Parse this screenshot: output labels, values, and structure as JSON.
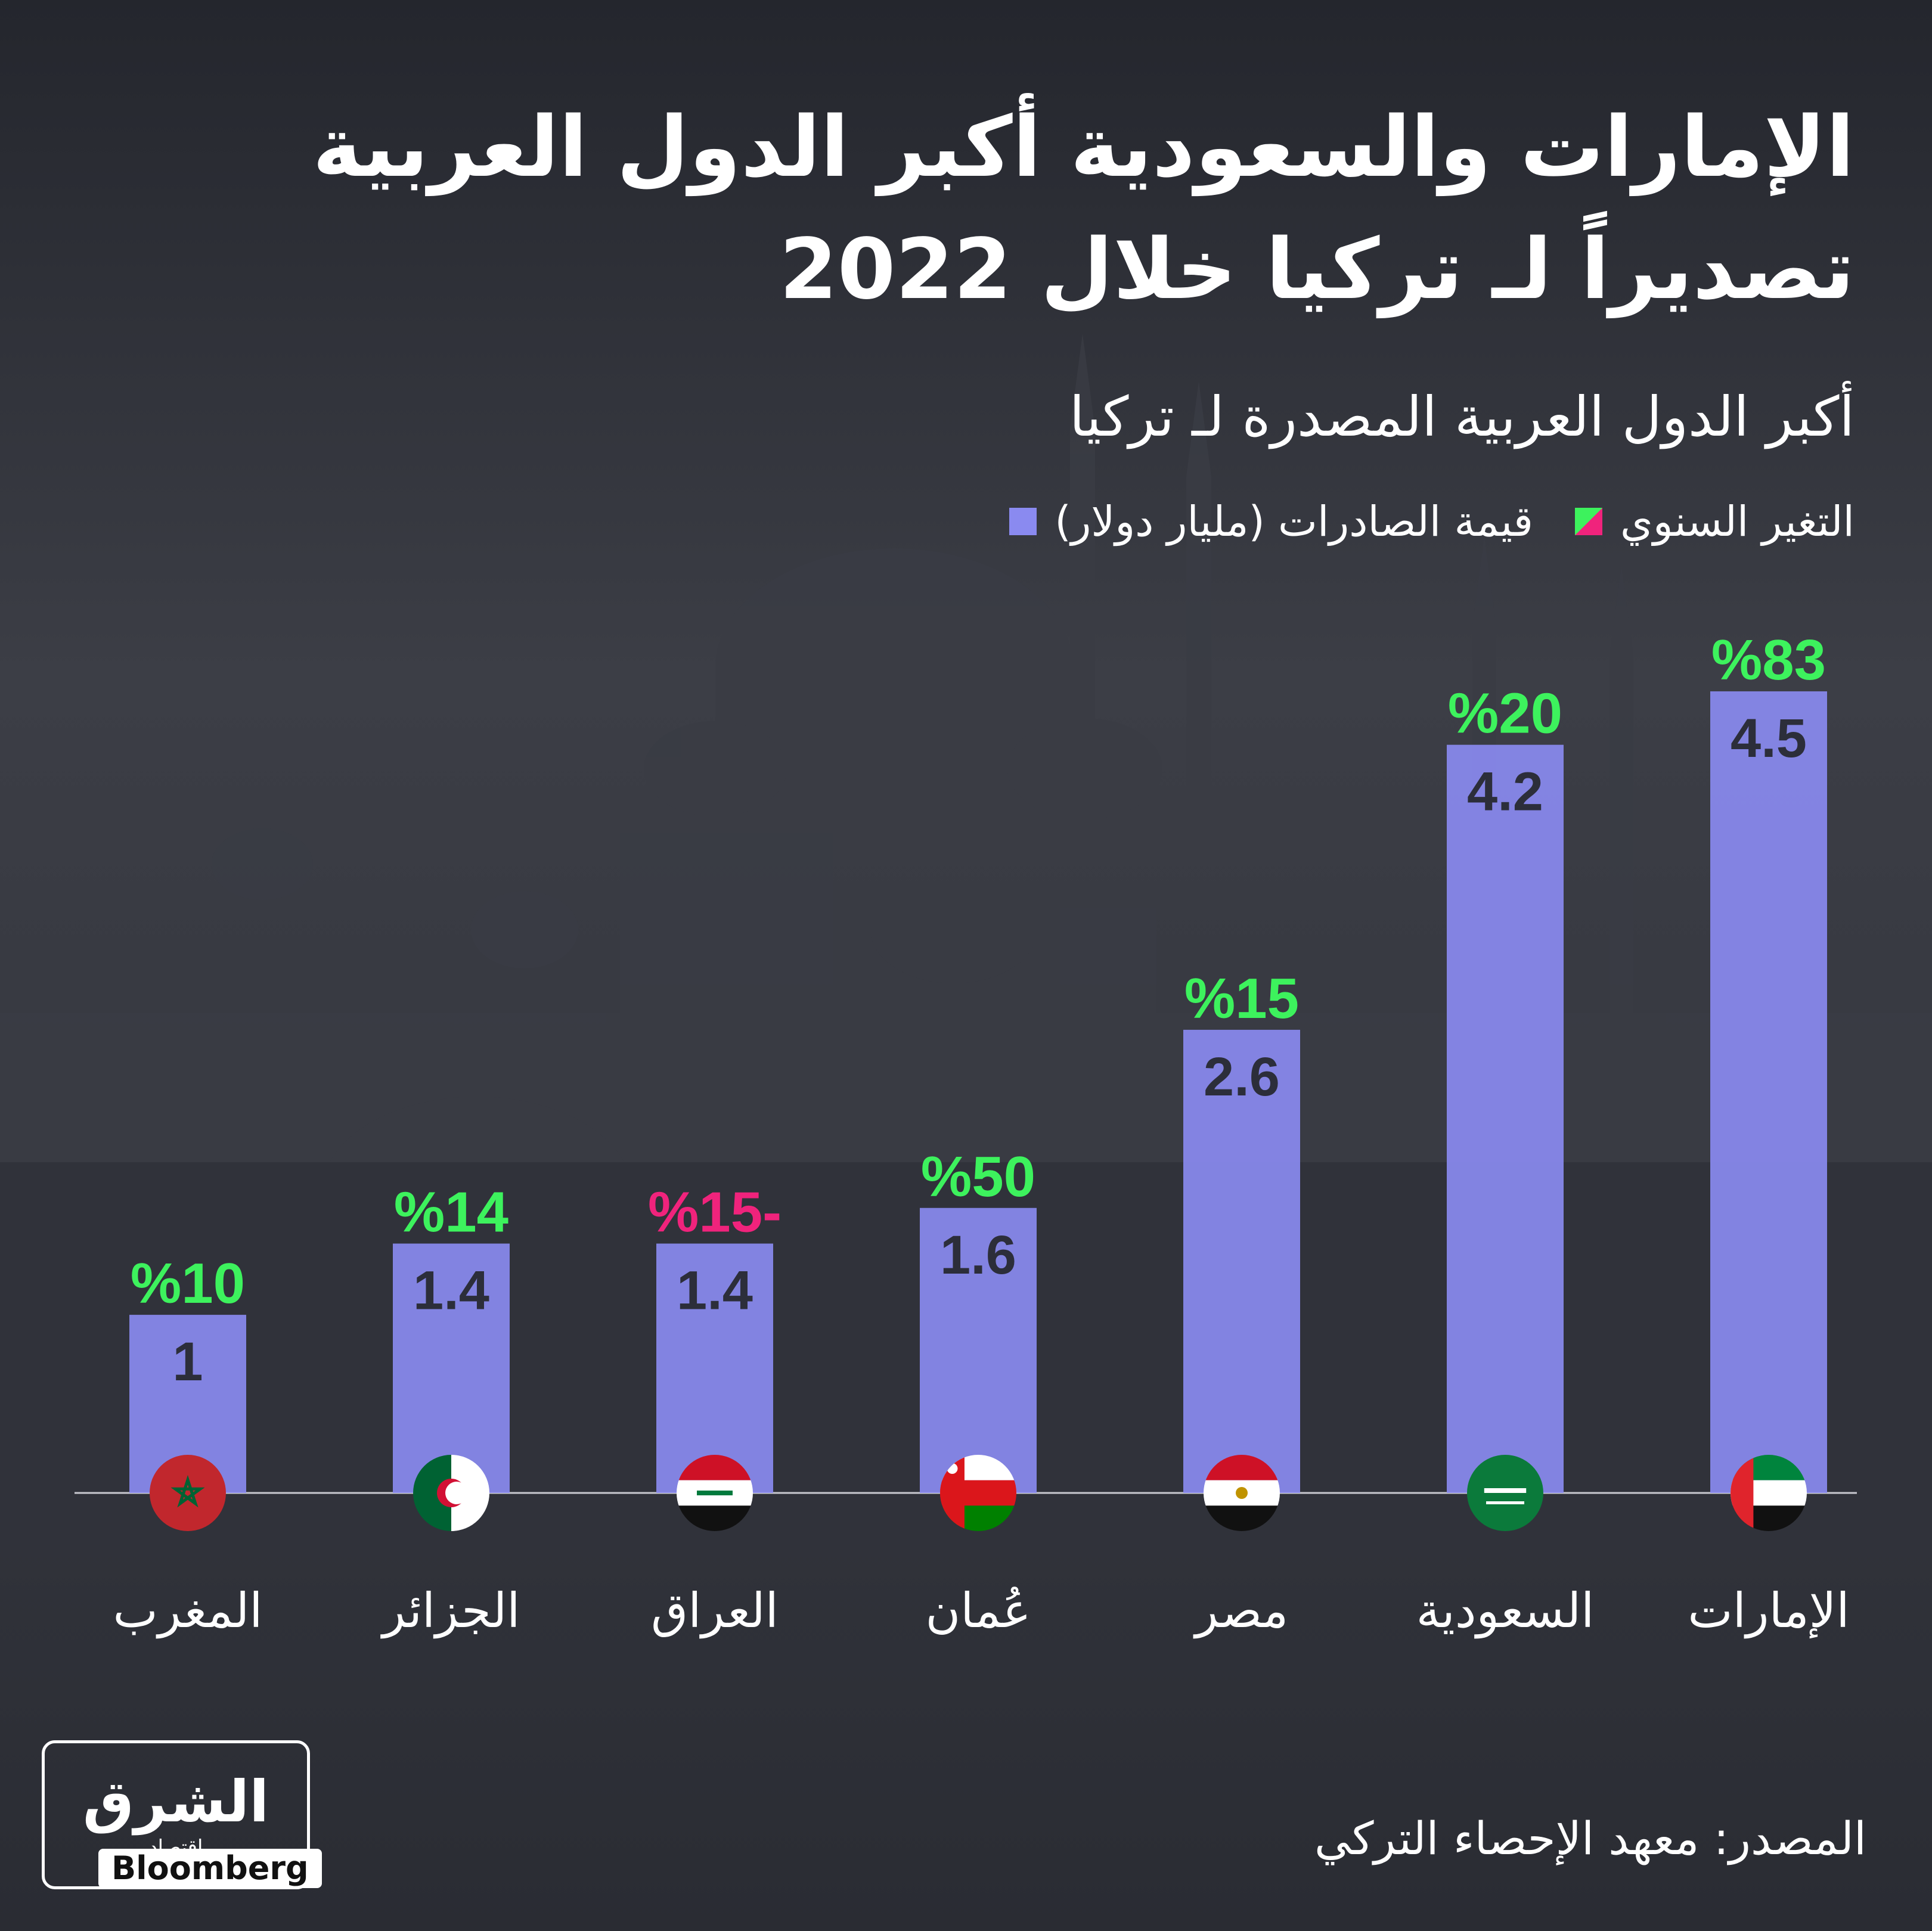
{
  "title": "الإمارات والسعودية أكبر الدول العربية تصديراً لـ تركيا خلال 2022",
  "subtitle": "أكبر الدول العربية المصدرة لـ تركيا",
  "legend": {
    "exports_label": "قيمة الصادرات (مليار دولار)",
    "change_label": "التغير السنوي"
  },
  "source": "المصدر: معهد الإحصاء التركي",
  "brand": {
    "name": "الشرق",
    "sub": "اقتصاد",
    "partner": "Bloomberg"
  },
  "colors": {
    "bar": "#8a8af0",
    "positive": "#3df25d",
    "negative": "#f0237c",
    "value_text": "#2c2e3a"
  },
  "chart_data": {
    "type": "bar",
    "categories": [
      "الإمارات",
      "السعودية",
      "مصر",
      "عُمان",
      "العراق",
      "الجزائر",
      "المغرب"
    ],
    "series": [
      {
        "name": "قيمة الصادرات (مليار دولار)",
        "values": [
          4.5,
          4.2,
          2.6,
          1.6,
          1.4,
          1.4,
          1
        ]
      }
    ],
    "value_labels": [
      "4.5",
      "4.2",
      "2.6",
      "1.6",
      "1.4",
      "1.4",
      "1"
    ],
    "annual_change_labels": [
      "%83",
      "%20",
      "%15",
      "%50",
      "%15-",
      "%14",
      "%10"
    ],
    "annual_change_positive": [
      true,
      true,
      true,
      true,
      false,
      true,
      true
    ],
    "flags": [
      "uae-flag",
      "saudi-flag",
      "egypt-flag",
      "oman-flag",
      "iraq-flag",
      "algeria-flag",
      "morocco-flag"
    ],
    "ylim": [
      0,
      4.5
    ]
  }
}
